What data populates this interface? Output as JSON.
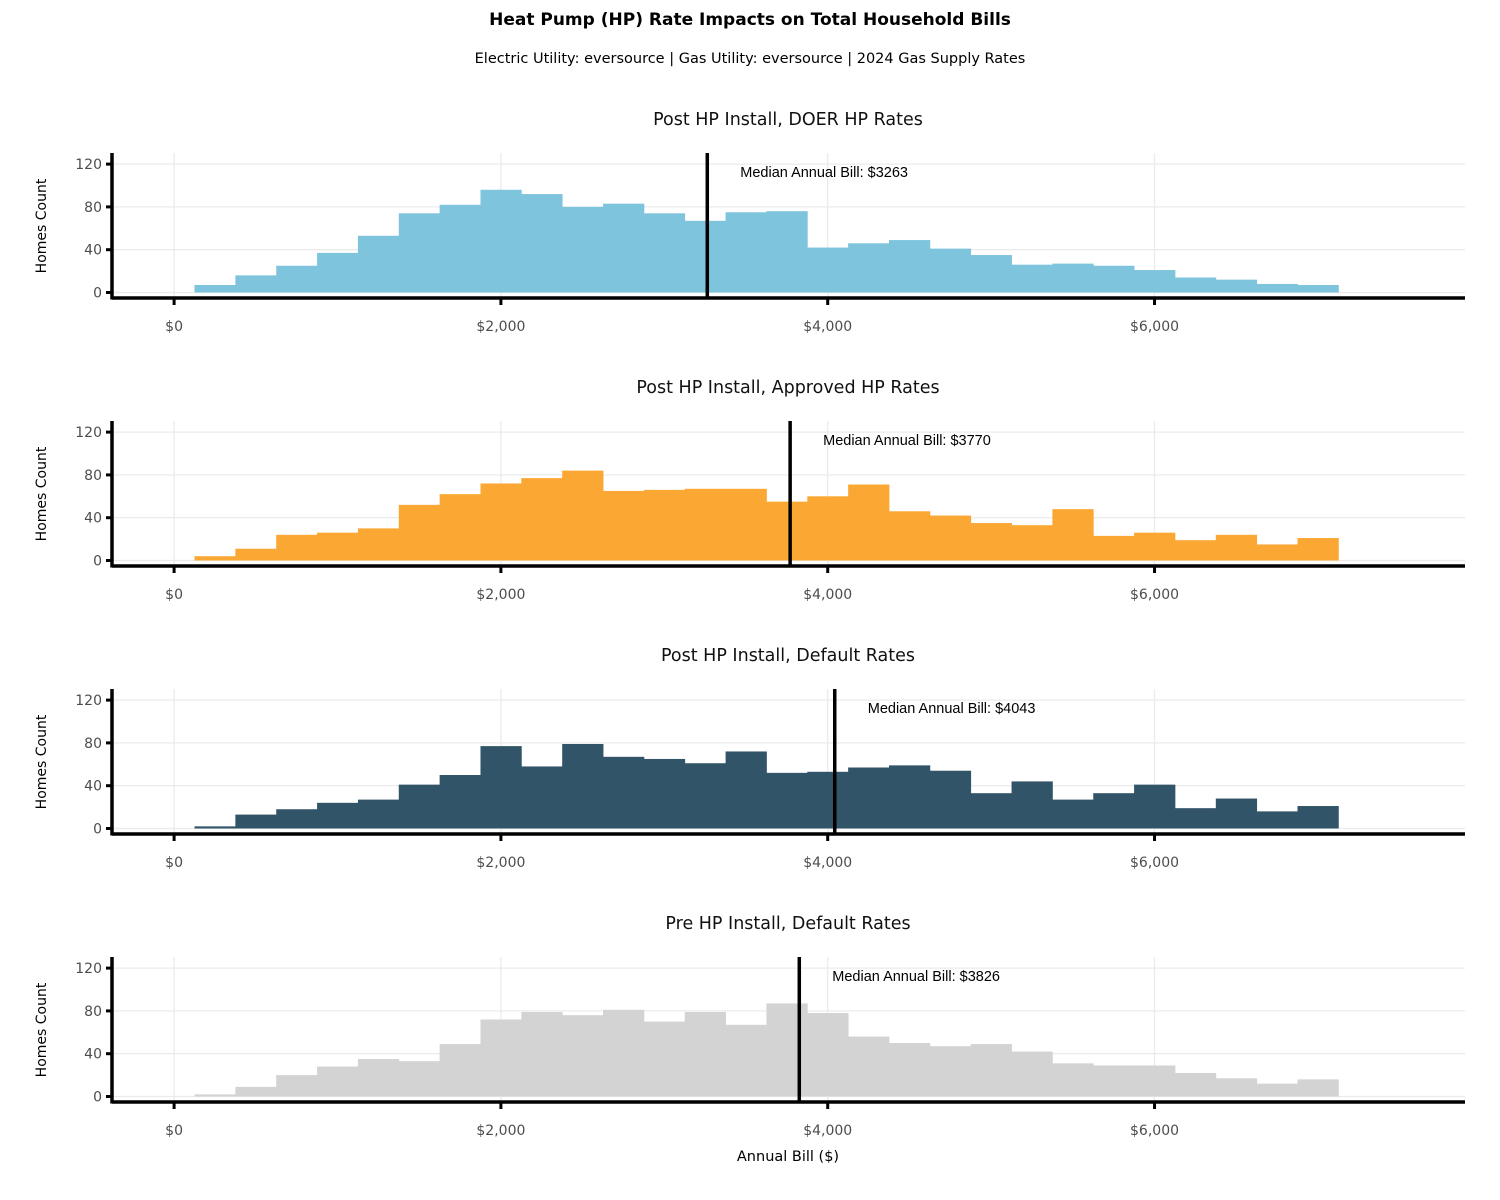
{
  "figure": {
    "title": "Heat Pump (HP) Rate Impacts on Total Household Bills",
    "subtitle": "Electric Utility: eversource | Gas Utility: eversource | 2024 Gas Supply Rates",
    "xlabel": "Annual Bill ($)",
    "ylabel": "Homes Count"
  },
  "chart_data": [
    {
      "type": "bar",
      "title": "Post HP Install, DOER HP Rates",
      "color": "#7ec4dc",
      "xlabel": "",
      "ylabel": "Homes Count",
      "bin_start": -125,
      "bin_width": 250,
      "values": [
        0,
        7,
        16,
        25,
        37,
        53,
        74,
        82,
        96,
        92,
        80,
        83,
        74,
        67,
        75,
        76,
        42,
        46,
        49,
        41,
        35,
        26,
        27,
        25,
        21,
        14,
        12,
        8,
        7
      ],
      "xlim": [
        -380,
        7900
      ],
      "ylim": [
        0,
        130
      ],
      "xticks": [
        0,
        2000,
        4000,
        6000
      ],
      "xtick_labels": [
        "$0",
        "$2,000",
        "$4,000",
        "$6,000"
      ],
      "yticks": [
        0,
        40,
        80,
        120
      ],
      "ytick_labels": [
        "0",
        "40",
        "80",
        "120"
      ],
      "median": 3263,
      "median_label": "Median Annual Bill: $3263"
    },
    {
      "type": "bar",
      "title": "Post HP Install, Approved HP Rates",
      "color": "#fba733",
      "xlabel": "",
      "ylabel": "Homes Count",
      "bin_start": -125,
      "bin_width": 250,
      "values": [
        0,
        4,
        11,
        24,
        26,
        30,
        52,
        62,
        72,
        77,
        84,
        65,
        66,
        67,
        67,
        55,
        60,
        71,
        46,
        42,
        35,
        33,
        48,
        23,
        26,
        19,
        24,
        15,
        21
      ],
      "xlim": [
        -380,
        7900
      ],
      "ylim": [
        0,
        130
      ],
      "xticks": [
        0,
        2000,
        4000,
        6000
      ],
      "xtick_labels": [
        "$0",
        "$2,000",
        "$4,000",
        "$6,000"
      ],
      "yticks": [
        0,
        40,
        80,
        120
      ],
      "ytick_labels": [
        "0",
        "40",
        "80",
        "120"
      ],
      "median": 3770,
      "median_label": "Median Annual Bill: $3770"
    },
    {
      "type": "bar",
      "title": "Post HP Install, Default Rates",
      "color": "#325468",
      "xlabel": "",
      "ylabel": "Homes Count",
      "bin_start": -125,
      "bin_width": 250,
      "values": [
        0,
        2,
        13,
        18,
        24,
        27,
        41,
        50,
        77,
        58,
        79,
        67,
        65,
        61,
        72,
        52,
        53,
        57,
        59,
        54,
        33,
        44,
        27,
        33,
        41,
        19,
        28,
        16,
        21
      ],
      "xlim": [
        -380,
        7900
      ],
      "ylim": [
        0,
        130
      ],
      "xticks": [
        0,
        2000,
        4000,
        6000
      ],
      "xtick_labels": [
        "$0",
        "$2,000",
        "$4,000",
        "$6,000"
      ],
      "yticks": [
        0,
        40,
        80,
        120
      ],
      "ytick_labels": [
        "0",
        "40",
        "80",
        "120"
      ],
      "median": 4043,
      "median_label": "Median Annual Bill: $4043"
    },
    {
      "type": "bar",
      "title": "Pre HP Install, Default Rates",
      "color": "#d3d3d3",
      "xlabel": "Annual Bill ($)",
      "ylabel": "Homes Count",
      "bin_start": -125,
      "bin_width": 250,
      "values": [
        0,
        2,
        9,
        20,
        28,
        35,
        33,
        49,
        72,
        79,
        76,
        81,
        70,
        79,
        67,
        87,
        78,
        56,
        50,
        47,
        49,
        42,
        31,
        29,
        29,
        22,
        17,
        12,
        16
      ],
      "xlim": [
        -380,
        7900
      ],
      "ylim": [
        0,
        130
      ],
      "xticks": [
        0,
        2000,
        4000,
        6000
      ],
      "xtick_labels": [
        "$0",
        "$2,000",
        "$4,000",
        "$6,000"
      ],
      "yticks": [
        0,
        40,
        80,
        120
      ],
      "ytick_labels": [
        "0",
        "40",
        "80",
        "120"
      ],
      "median": 3826,
      "median_label": "Median Annual Bill: $3826"
    }
  ]
}
